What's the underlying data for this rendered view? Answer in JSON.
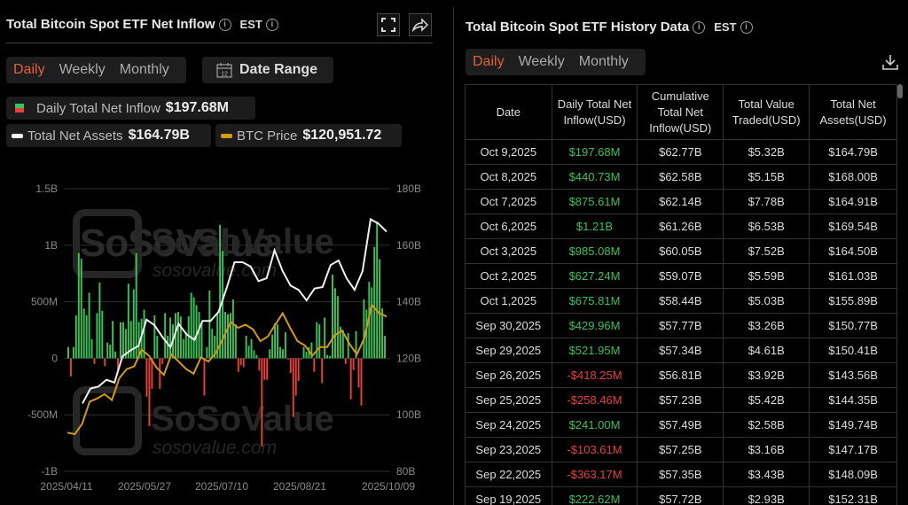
{
  "left": {
    "title": "Total Bitcoin Spot ETF Net Inflow",
    "timezone": "EST",
    "tabs": [
      "Daily",
      "Weekly",
      "Monthly"
    ],
    "active_tab": "Daily",
    "date_range_label": "Date Range",
    "calendar_day": "12",
    "legend": {
      "inflow_label": "Daily Total Net Inflow",
      "inflow_value": "$197.68M",
      "assets_label": "Total Net Assets",
      "assets_value": "$164.79B",
      "btc_label": "BTC Price",
      "btc_value": "$120,951.72"
    },
    "watermark": "SoSoValue",
    "watermark_url": "sosovalue.com"
  },
  "right": {
    "title": "Total Bitcoin Spot ETF History Data",
    "timezone": "EST",
    "tabs": [
      "Daily",
      "Weekly",
      "Monthly"
    ],
    "active_tab": "Daily",
    "columns": [
      "Date",
      "Daily Total Net Inflow(USD)",
      "Cumulative Total Net Inflow(USD)",
      "Total Value Traded(USD)",
      "Total Net Assets(USD)"
    ],
    "rows": [
      [
        "Oct 9,2025",
        "$197.68M",
        "$62.77B",
        "$5.32B",
        "$164.79B"
      ],
      [
        "Oct 8,2025",
        "$440.73M",
        "$62.58B",
        "$5.15B",
        "$168.00B"
      ],
      [
        "Oct 7,2025",
        "$875.61M",
        "$62.14B",
        "$7.78B",
        "$164.91B"
      ],
      [
        "Oct 6,2025",
        "$1.21B",
        "$61.26B",
        "$6.53B",
        "$169.54B"
      ],
      [
        "Oct 3,2025",
        "$985.08M",
        "$60.05B",
        "$7.52B",
        "$164.50B"
      ],
      [
        "Oct 2,2025",
        "$627.24M",
        "$59.07B",
        "$5.59B",
        "$161.03B"
      ],
      [
        "Oct 1,2025",
        "$675.81M",
        "$58.44B",
        "$5.03B",
        "$155.89B"
      ],
      [
        "Sep 30,2025",
        "$429.96M",
        "$57.77B",
        "$3.26B",
        "$150.77B"
      ],
      [
        "Sep 29,2025",
        "$521.95M",
        "$57.34B",
        "$4.61B",
        "$150.41B"
      ],
      [
        "Sep 26,2025",
        "-$418.25M",
        "$56.81B",
        "$3.92B",
        "$143.56B"
      ],
      [
        "Sep 25,2025",
        "-$258.46M",
        "$57.23B",
        "$5.42B",
        "$144.35B"
      ],
      [
        "Sep 24,2025",
        "$241.00M",
        "$57.49B",
        "$2.58B",
        "$149.74B"
      ],
      [
        "Sep 23,2025",
        "-$103.61M",
        "$57.25B",
        "$3.16B",
        "$147.17B"
      ],
      [
        "Sep 22,2025",
        "-$363.17M",
        "$57.35B",
        "$3.43B",
        "$148.09B"
      ],
      [
        "Sep 19,2025",
        "$222.62M",
        "$57.72B",
        "$2.93B",
        "$152.31B"
      ]
    ]
  },
  "colors": {
    "positive": "#3cc15a",
    "negative": "#e5413a",
    "assets_line": "#f0f0f0",
    "btc_line": "#d49a12",
    "active_tab": "#e5603a"
  },
  "chart_data": {
    "type": "bar+line",
    "x_tick_labels": [
      "2025/04/11",
      "2025/05/27",
      "2025/07/10",
      "2025/08/21",
      "2025/10/09"
    ],
    "left_axis": {
      "ticks": [
        "1.5B",
        "1B",
        "500M",
        "0",
        "-500M",
        "-1B"
      ],
      "range_billion": [
        -1,
        1.5
      ]
    },
    "right_axis": {
      "ticks": [
        "180B",
        "160B",
        "140B",
        "120B",
        "100B",
        "80B"
      ],
      "range_billion": [
        80,
        180
      ]
    },
    "grid": true,
    "series": [
      {
        "name": "Daily Total Net Inflow",
        "type": "bar",
        "unit": "USD billion",
        "values": [
          0.1,
          -0.16,
          0.1,
          0.38,
          0.93,
          0.88,
          0.44,
          0.38,
          0.58,
          0.17,
          -0.05,
          0.4,
          0.67,
          0.42,
          -0.07,
          0.14,
          0.12,
          0.33,
          0.06,
          -0.1,
          0.32,
          0.32,
          0.26,
          0.66,
          0.33,
          0.61,
          0.93,
          0.32,
          0.35,
          0.43,
          -0.34,
          -0.6,
          -0.27,
          0.38,
          0.2,
          -0.27,
          -0.05,
          0.4,
          0.2,
          0.36,
          0.3,
          0.4,
          0.41,
          0.37,
          0.17,
          0.23,
          0.37,
          0.58,
          0.54,
          0.47,
          0.41,
          0.31,
          -0.33,
          0.1,
          0.6,
          0.26,
          0.2,
          0.4,
          1.18,
          0.95,
          0.41,
          0.39,
          0.4,
          0.52,
          0.3,
          -0.12,
          -0.06,
          -0.08,
          0.2,
          0.11,
          0.17,
          0.07,
          0.03,
          -0.11,
          -0.78,
          -0.19,
          -0.19,
          0.08,
          0.21,
          0.31,
          0.3,
          0.1,
          0.08,
          0.23,
          -0.01,
          -0.13,
          -0.52,
          -0.33,
          -0.2,
          -0.01,
          0.1,
          0.06,
          0.1,
          0.14,
          -0.12,
          0.32,
          0.3,
          -0.22,
          0.36,
          0.03,
          0.02,
          0.74,
          0.62,
          0.55,
          0.28,
          0.25,
          -0.05,
          0.223,
          -0.363,
          -0.104,
          0.241,
          -0.258,
          -0.418,
          0.522,
          0.43,
          0.676,
          0.627,
          0.985,
          1.21,
          0.876,
          0.441,
          0.198
        ]
      },
      {
        "name": "Total Net Assets",
        "type": "line",
        "unit": "USD billion",
        "values": [
          104,
          109.3,
          110,
          112.4,
          111.4,
          120.7,
          122.8,
          124.4,
          133.7,
          131.7,
          127.5,
          123.9,
          132.2,
          128.5,
          126.5,
          133.2,
          133.2,
          136.4,
          144.7,
          154,
          154,
          152.5,
          147.3,
          148.3,
          158.2,
          150.9,
          145.7,
          144.2,
          140.5,
          144.7,
          145.2,
          153,
          154.6,
          148.3,
          144.2,
          150.9,
          169.2,
          167.6,
          164.79
        ]
      },
      {
        "name": "BTC Price",
        "type": "line",
        "unit": "USD",
        "values": [
          83500,
          83000,
          86400,
          93500,
          94500,
          95900,
          94000,
          101100,
          104000,
          104900,
          110200,
          108300,
          104500,
          102100,
          108700,
          106400,
          104000,
          102500,
          107800,
          106400,
          109200,
          114000,
          119200,
          117300,
          118300,
          116800,
          113000,
          114500,
          118300,
          122000,
          117300,
          113000,
          111600,
          108300,
          111100,
          111100,
          114900,
          116400,
          112100,
          108700,
          114000,
          124700,
          122000,
          120951.72
        ]
      }
    ]
  }
}
